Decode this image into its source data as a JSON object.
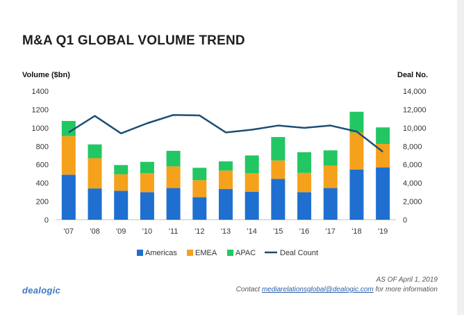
{
  "title": "M&A Q1 GLOBAL VOLUME TREND",
  "footer": {
    "as_of": "AS OF April 1, 2019",
    "contact_prefix": "Contact ",
    "contact_email": "mediarelationsglobal@dealogic.com",
    "contact_suffix": " for more information",
    "logo": "dealogic"
  },
  "chart_data": {
    "type": "bar",
    "stacked": true,
    "title": "M&A Q1 GLOBAL VOLUME TREND",
    "categories": [
      "'07",
      "'08",
      "'09",
      "'10",
      "'11",
      "'12",
      "'13",
      "'14",
      "'15",
      "'16",
      "'17",
      "'18",
      "'19"
    ],
    "series": [
      {
        "name": "Americas",
        "type": "bar",
        "axis": "left",
        "color": "#1f6fd0",
        "values": [
          490,
          340,
          315,
          300,
          345,
          245,
          335,
          305,
          445,
          300,
          345,
          545,
          570
        ]
      },
      {
        "name": "EMEA",
        "type": "bar",
        "axis": "left",
        "color": "#f5a11c",
        "values": [
          420,
          330,
          180,
          205,
          235,
          185,
          200,
          200,
          200,
          210,
          245,
          405,
          255
        ]
      },
      {
        "name": "APAC",
        "type": "bar",
        "axis": "left",
        "color": "#22c763",
        "values": [
          165,
          150,
          100,
          125,
          170,
          135,
          100,
          195,
          255,
          225,
          165,
          225,
          180
        ]
      },
      {
        "name": "Deal Count",
        "type": "line",
        "axis": "right",
        "color": "#1d4e73",
        "values": [
          9500,
          11300,
          9400,
          10500,
          11400,
          11350,
          9500,
          9800,
          10250,
          10000,
          10250,
          9600,
          7400
        ]
      }
    ],
    "y_left": {
      "label": "Volume ($bn)",
      "min": 0,
      "max": 1400,
      "ticks": [
        "0",
        "200",
        "400",
        "600",
        "800",
        "1000",
        "1200",
        "1400"
      ]
    },
    "y_right": {
      "label": "Deal No.",
      "min": 0,
      "max": 14000,
      "ticks": [
        "0",
        "2,000",
        "4,000",
        "6,000",
        "8,000",
        "10,000",
        "12,000",
        "14,000"
      ]
    },
    "legend": {
      "position": "bottom",
      "items": [
        "Americas",
        "EMEA",
        "APAC",
        "Deal Count"
      ]
    },
    "grid": false
  }
}
